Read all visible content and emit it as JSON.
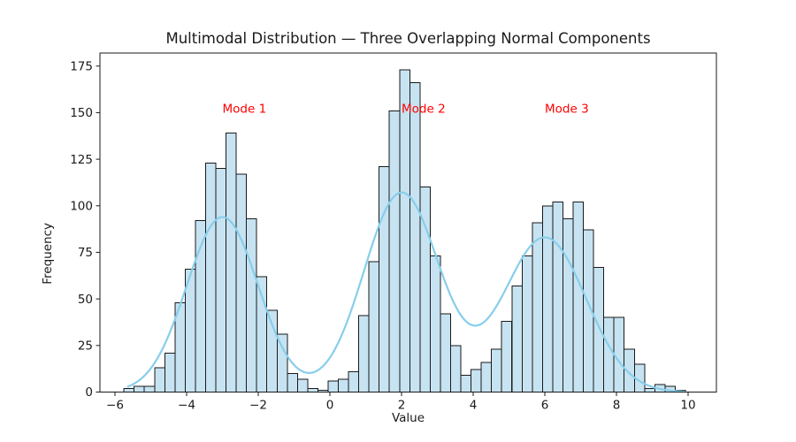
{
  "chart_data": {
    "type": "bar",
    "subtype": "histogram-with-density-curve",
    "title": "Multimodal Distribution — Three Overlapping Normal Components",
    "xlabel": "Value",
    "ylabel": "Frequency",
    "xlim": [
      -6.42,
      10.79
    ],
    "ylim": [
      0,
      182
    ],
    "xticks": [
      -6,
      -4,
      -2,
      0,
      2,
      4,
      6,
      8,
      10
    ],
    "yticks": [
      0,
      25,
      50,
      75,
      100,
      125,
      150,
      175
    ],
    "grid": false,
    "legend": null,
    "bin_start": -5.75,
    "bin_width": 0.285,
    "bin_count": 55,
    "frequencies": [
      2,
      3,
      3,
      13,
      21,
      48,
      66,
      92,
      123,
      120,
      139,
      117,
      93,
      62,
      44,
      31,
      10,
      7,
      2,
      1,
      6,
      7,
      11,
      41,
      70,
      121,
      151,
      173,
      166,
      110,
      73,
      42,
      25,
      9,
      12,
      16,
      23,
      38,
      57,
      73,
      91,
      100,
      102,
      93,
      102,
      87,
      67,
      40,
      40,
      23,
      15,
      2,
      4,
      3,
      1
    ],
    "bar_fill": "#c7e3f1",
    "bar_edge": "#1a1a1a",
    "curve": {
      "color": "#87CEEB",
      "line_width": 2.2,
      "x_start": -5.64,
      "x_end": 9.95,
      "components": [
        {
          "mean": -3,
          "sigma": 1.0,
          "peak_height": 94
        },
        {
          "mean": 2,
          "sigma": 1.05,
          "peak_height": 107
        },
        {
          "mean": 6,
          "sigma": 1.15,
          "peak_height": 83
        }
      ]
    },
    "annotations": [
      {
        "text": "Mode 1",
        "x": -3,
        "y": 150,
        "color": "#ff0000"
      },
      {
        "text": "Mode 2",
        "x": 2,
        "y": 150,
        "color": "#ff0000"
      },
      {
        "text": "Mode 3",
        "x": 6,
        "y": 150,
        "color": "#ff0000"
      }
    ],
    "axis_color": "#1a1a1a",
    "background": "#ffffff"
  }
}
